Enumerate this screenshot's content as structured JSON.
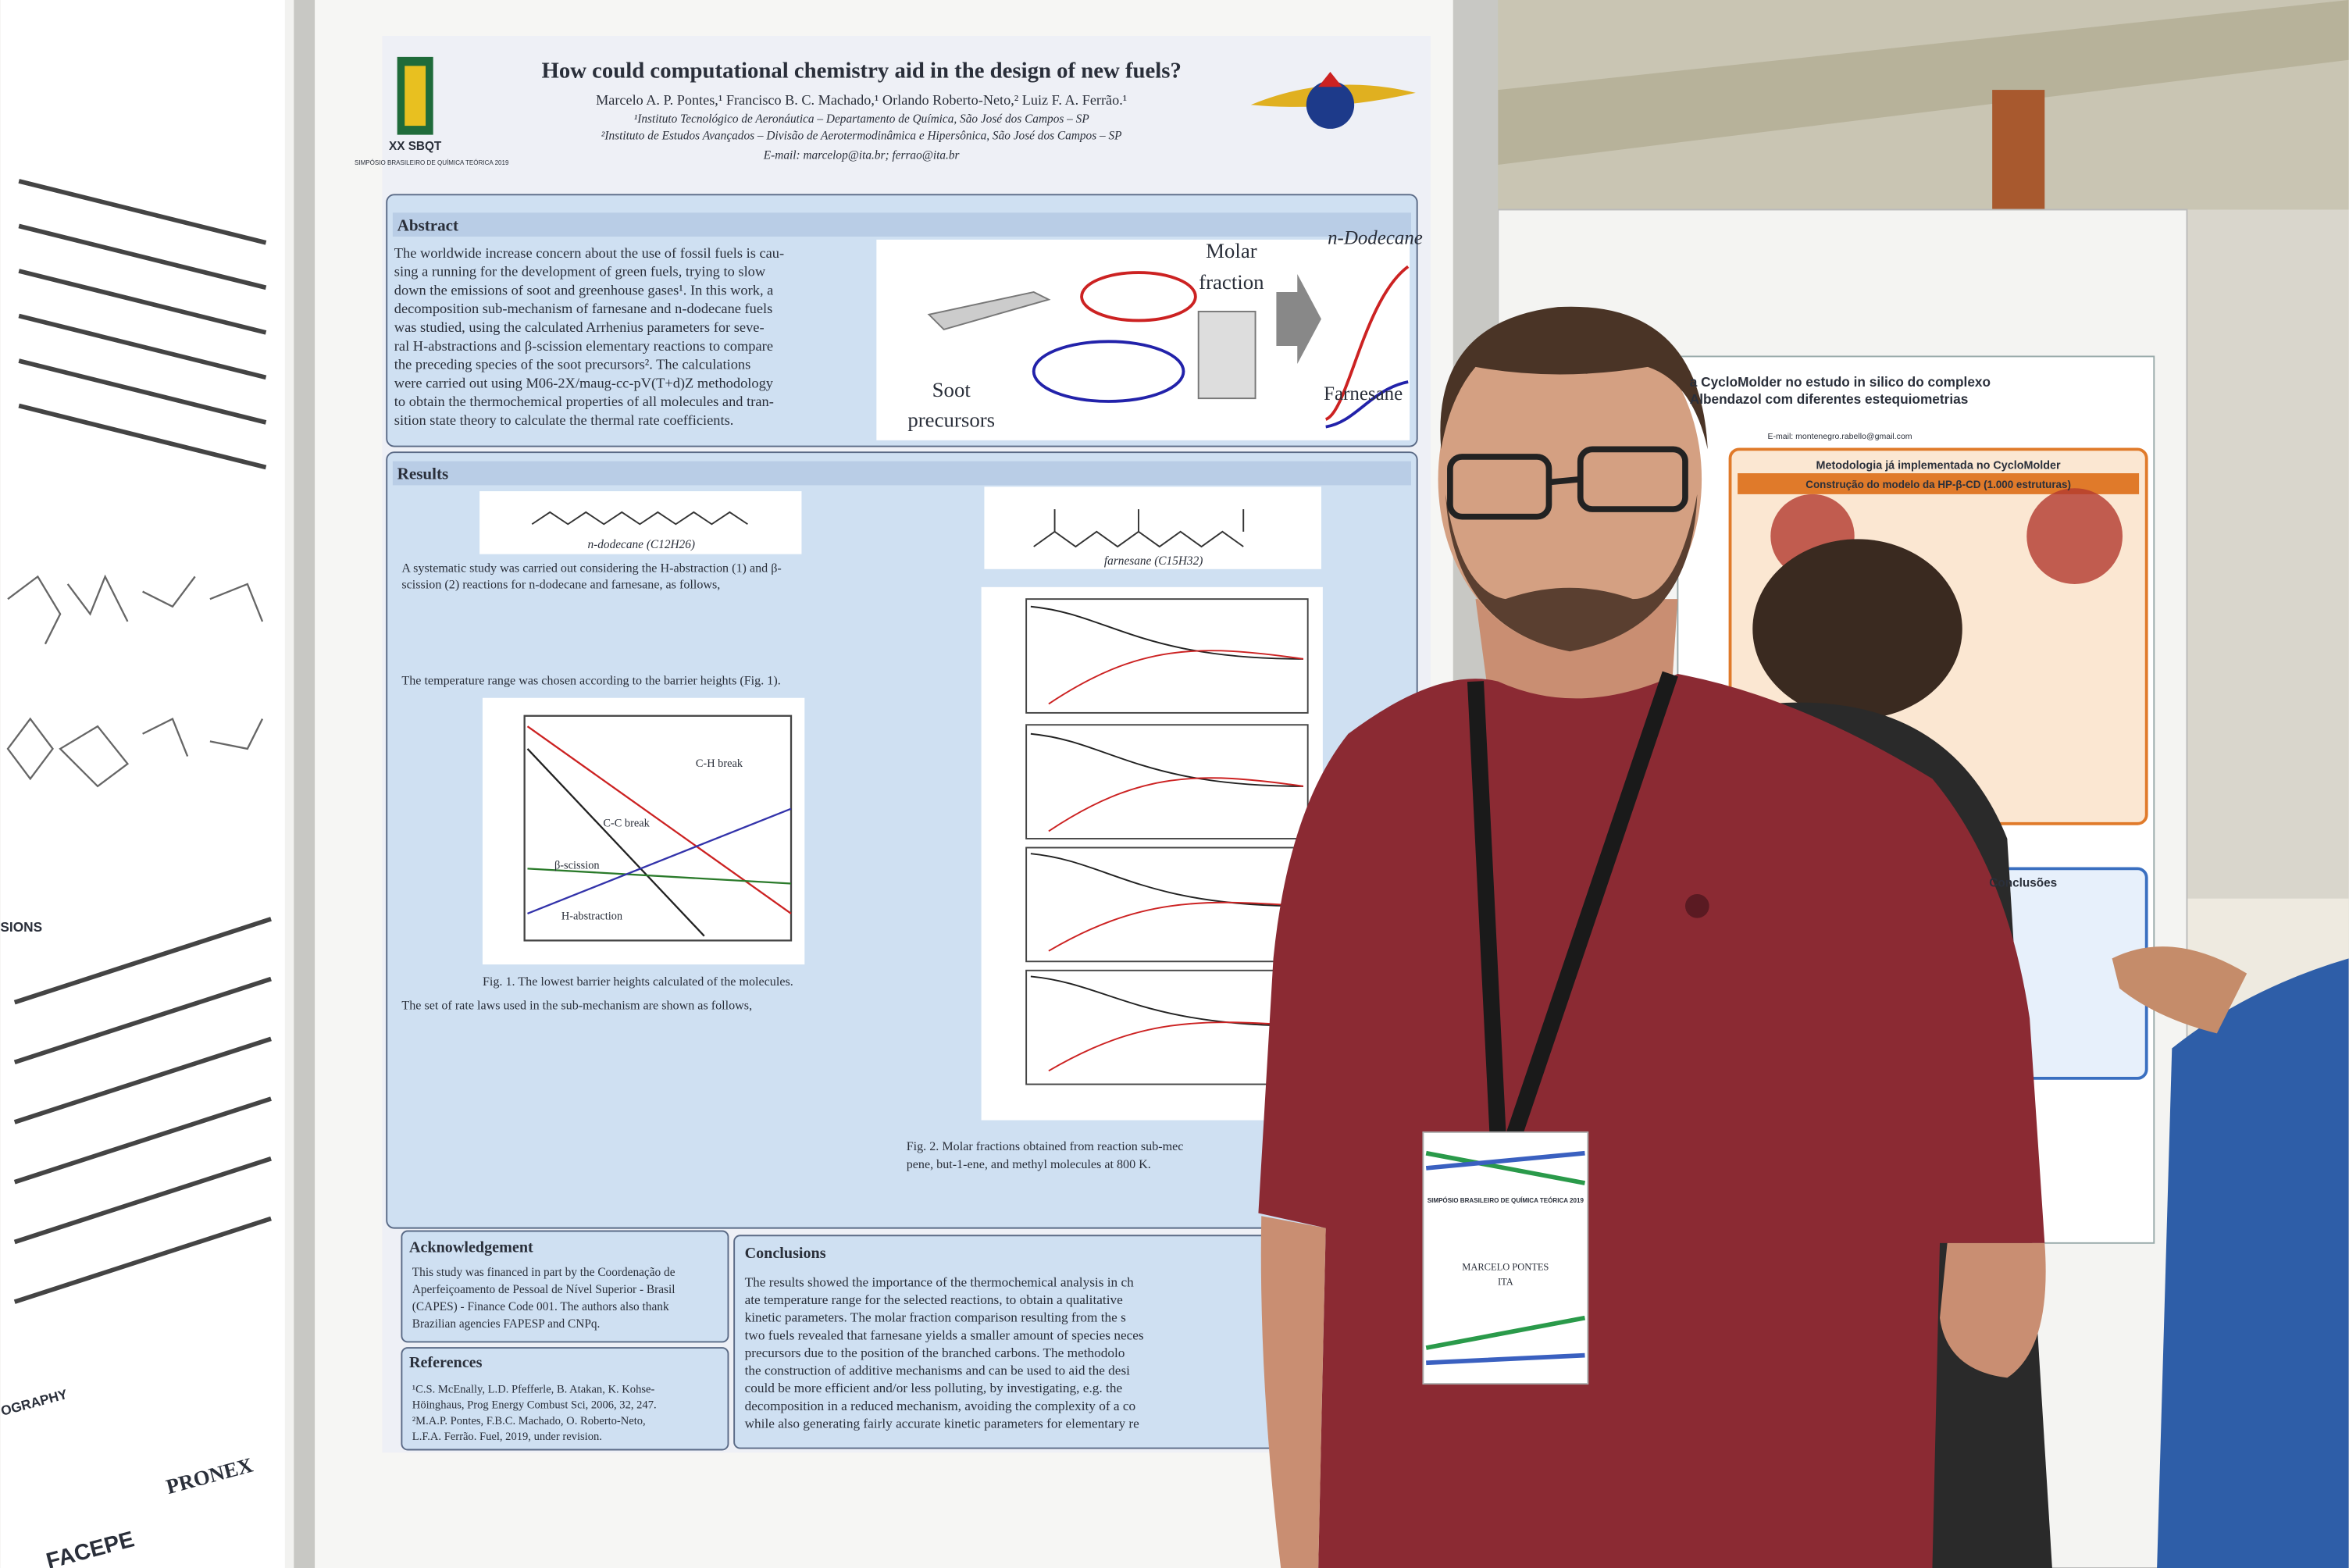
{
  "poster": {
    "title": "How could computational chemistry aid in the design of new fuels?",
    "authors": "Marcelo A. P. Pontes,¹ Francisco B. C. Machado,¹ Orlando Roberto-Neto,² Luiz F. A. Ferrão.¹",
    "affiliations": [
      "¹Instituto Tecnológico de Aeronáutica – Departamento de Química, São José dos Campos – SP",
      "²Instituto de Estudos Avançados – Divisão de Aerotermodinâmica e Hipersônica, São José dos Campos – SP"
    ],
    "email": "E-mail: marcelop@ita.br; ferrao@ita.br",
    "logo": {
      "name": "XX SBQT",
      "event": "SIMPÓSIO BRASILEIRO DE QUÍMICA TEÓRICA 2019"
    },
    "abstract": {
      "heading": "Abstract",
      "lines": [
        "The worldwide increase concern about the use of fossil fuels is cau-",
        "sing a running for the development of green fuels, trying to slow",
        "down the emissions of soot and greenhouse gases¹. In this work, a",
        "decomposition sub-mechanism of farnesane and n-dodecane fuels",
        "was studied, using the calculated Arrhenius parameters for seve-",
        "ral H-abstractions and β-scission elementary reactions to compare",
        "the preceding species of the soot precursors². The calculations",
        "were carried out using M06-2X/maug-cc-pV(T+d)Z methodology",
        "to obtain the thermochemical properties of all molecules and tran-",
        "sition state theory to calculate the thermal rate coefficients."
      ],
      "graphic": {
        "molar": "Molar",
        "fraction": "fraction",
        "dodecane": "n-Dodecane",
        "soot": "Soot",
        "precursors": "precursors",
        "farnesane": "Farnesane"
      }
    },
    "results": {
      "heading": "Results",
      "dodecane": "n-dodecane (C12H26)",
      "farnesane": "farnesane (C15H32)",
      "lines": [
        "A systematic study was carried out considering the H-abstraction (1) and β-",
        "scission (2) reactions for n-dodecane and farnesane, as follows,",
        "The temperature range was chosen according to the barrier heights (Fig. 1).",
        "The set of rate laws used in the sub-mechanism are shown as follows,"
      ],
      "fig1": "Fig. 1. The lowest barrier heights calculated of the molecules.",
      "fig1_labels": [
        "C-H break",
        "C-C break",
        "β-scission",
        "H-abstraction"
      ],
      "fig2": [
        "Fig. 2. Molar fractions obtained from reaction sub-mec",
        "pene, but-1-ene, and methyl molecules at 800 K."
      ]
    },
    "acknowledgement": {
      "heading": "Acknowledgement",
      "lines": [
        "This study was financed in part by the Coordenação de",
        "Aperfeiçoamento de Pessoal de Nível Superior - Brasil",
        "(CAPES) - Finance Code 001. The authors also thank",
        "Brazilian agencies FAPESP and CNPq."
      ]
    },
    "references": {
      "heading": "References",
      "lines": [
        "¹C.S. McEnally, L.D. Pfefferle, B. Atakan, K. Kohse-",
        "Höinghaus, Prog Energy Combust Sci, 2006, 32, 247.",
        "²M.A.P. Pontes, F.B.C. Machado, O. Roberto-Neto,",
        "L.F.A. Ferrão. Fuel, 2019, under revision."
      ]
    },
    "conclusions": {
      "heading": "Conclusions",
      "lines": [
        "The results showed the importance of the thermochemical analysis in ch",
        "ate temperature range for the selected reactions, to obtain a qualitative",
        "kinetic parameters. The molar fraction comparison resulting from the s",
        "two fuels revealed that farnesane yields a smaller amount of species neces",
        "precursors due to the position of the branched carbons. The methodolo",
        "the construction of additive mechanisms and can be used to aid the desi",
        "could be more efficient and/or less polluting, by investigating, e.g. the",
        "decomposition in a reduced mechanism, avoiding the complexity of a co",
        "while also generating fairly accurate kinetic parameters for elementary re"
      ]
    }
  },
  "badge": {
    "event": "SIMPÓSIO BRASILEIRO DE QUÍMICA TEÓRICA 2019",
    "name": "MARCELO PONTES",
    "institution": "ITA"
  },
  "left_poster": {
    "sections": "SIONS",
    "bibliography": "OGRAPHY",
    "logos": [
      "PRONEX",
      "FACEPE"
    ]
  },
  "right_poster": {
    "title": [
      "a CycloMolder no estudo in silico do complexo",
      "Albendazol com diferentes estequiometrias"
    ],
    "method": "Metodologia já implementada no CycloMolder",
    "model": "Construção do modelo da HP-β-CD (1.000 estruturas)",
    "conclusions": "Conclusões",
    "email": "E-mail: montenegro.rabello@gmail.com"
  }
}
